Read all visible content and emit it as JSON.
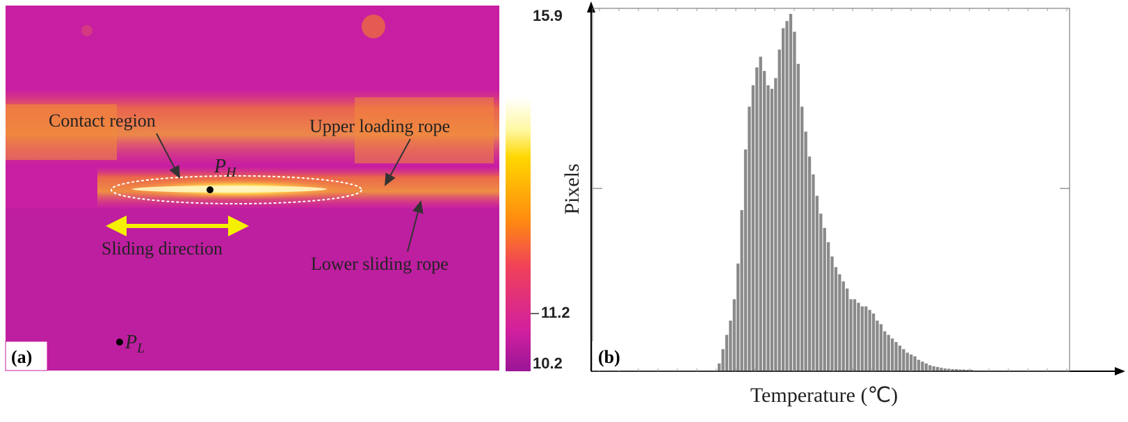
{
  "panel_a": {
    "tag": "(a)",
    "annotations": {
      "contact_region": "Contact region",
      "upper_rope": "Upper loading rope",
      "lower_rope": "Lower sliding rope",
      "sliding_direction": "Sliding direction",
      "ph_main": "P",
      "ph_sub": "H",
      "pl_main": "P",
      "pl_sub": "L"
    },
    "scale": {
      "max": "15.9",
      "mid": "11.2",
      "min": "10.2"
    },
    "colors": {
      "background": "#c81fa2",
      "hot": "#ffd24a",
      "arrow": "#f5f000"
    }
  },
  "chart_data": {
    "type": "bar",
    "panel_tag": "(b)",
    "xlabel": "Temperature (℃)",
    "ylabel": "Pixels",
    "bar_color": "#8a8a8a",
    "values": [
      0.02,
      0.06,
      0.1,
      0.14,
      0.2,
      0.3,
      0.45,
      0.62,
      0.74,
      0.8,
      0.85,
      0.88,
      0.84,
      0.8,
      0.79,
      0.82,
      0.9,
      0.96,
      0.98,
      1.0,
      0.95,
      0.86,
      0.74,
      0.67,
      0.6,
      0.55,
      0.49,
      0.44,
      0.4,
      0.36,
      0.32,
      0.29,
      0.27,
      0.25,
      0.23,
      0.2,
      0.2,
      0.19,
      0.18,
      0.18,
      0.17,
      0.16,
      0.14,
      0.13,
      0.11,
      0.1,
      0.09,
      0.08,
      0.07,
      0.06,
      0.05,
      0.045,
      0.04,
      0.03,
      0.025,
      0.02,
      0.015,
      0.012,
      0.01,
      0.008,
      0.006,
      0.005,
      0.004,
      0.004,
      0.003,
      0.003,
      0.002,
      0.002
    ],
    "ylim": [
      0,
      1
    ]
  }
}
